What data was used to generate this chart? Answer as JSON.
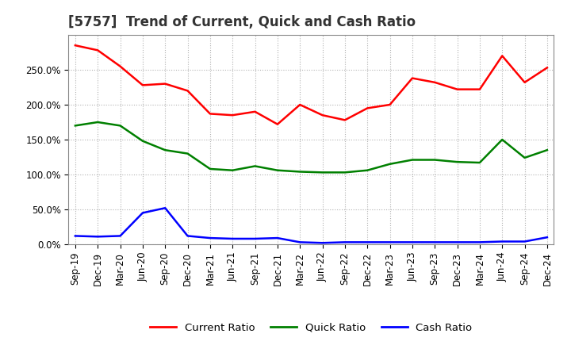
{
  "title": "[5757]  Trend of Current, Quick and Cash Ratio",
  "x_labels": [
    "Sep-19",
    "Dec-19",
    "Mar-20",
    "Jun-20",
    "Sep-20",
    "Dec-20",
    "Mar-21",
    "Jun-21",
    "Sep-21",
    "Dec-21",
    "Mar-22",
    "Jun-22",
    "Sep-22",
    "Dec-22",
    "Mar-23",
    "Jun-23",
    "Sep-23",
    "Dec-23",
    "Mar-24",
    "Jun-24",
    "Sep-24",
    "Dec-24"
  ],
  "current_ratio": [
    285,
    278,
    255,
    228,
    230,
    220,
    187,
    185,
    190,
    172,
    200,
    185,
    178,
    195,
    200,
    238,
    232,
    222,
    222,
    270,
    232,
    253
  ],
  "quick_ratio": [
    170,
    175,
    170,
    148,
    135,
    130,
    108,
    106,
    112,
    106,
    104,
    103,
    103,
    106,
    115,
    121,
    121,
    118,
    117,
    150,
    124,
    135
  ],
  "cash_ratio": [
    12,
    11,
    12,
    45,
    52,
    12,
    9,
    8,
    8,
    9,
    3,
    2,
    3,
    3,
    3,
    3,
    3,
    3,
    3,
    4,
    4,
    10
  ],
  "current_color": "#FF0000",
  "quick_color": "#008000",
  "cash_color": "#0000FF",
  "ylim_min": 0,
  "ylim_max": 300,
  "yticks": [
    0,
    50,
    100,
    150,
    200,
    250
  ],
  "ytick_labels": [
    "0.0%",
    "50.0%",
    "100.0%",
    "150.0%",
    "200.0%",
    "250.0%"
  ],
  "bg_color": "#FFFFFF",
  "plot_bg_color": "#FFFFFF",
  "grid_color": "#AAAAAA",
  "spine_color": "#888888",
  "title_fontsize": 12,
  "tick_fontsize": 8.5,
  "legend_fontsize": 9.5,
  "linewidth": 1.8
}
